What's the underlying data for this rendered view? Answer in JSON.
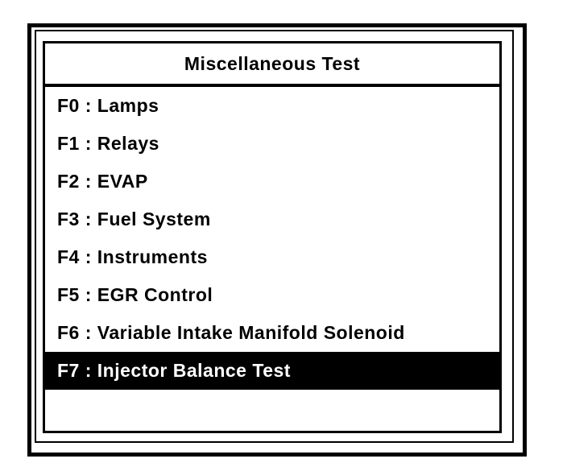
{
  "screen": {
    "title": "Miscellaneous Test"
  },
  "menu": {
    "items": [
      {
        "key": "F0",
        "label": "Lamps",
        "text": "F0 : Lamps",
        "selected": false
      },
      {
        "key": "F1",
        "label": "Relays",
        "text": "F1 : Relays",
        "selected": false
      },
      {
        "key": "F2",
        "label": "EVAP",
        "text": "F2 : EVAP",
        "selected": false
      },
      {
        "key": "F3",
        "label": "Fuel System",
        "text": "F3 : Fuel System",
        "selected": false
      },
      {
        "key": "F4",
        "label": "Instruments",
        "text": "F4 : Instruments",
        "selected": false
      },
      {
        "key": "F5",
        "label": "EGR Control",
        "text": "F5 : EGR Control",
        "selected": false
      },
      {
        "key": "F6",
        "label": "Variable Intake Manifold Solenoid",
        "text": "F6 : Variable Intake Manifold Solenoid",
        "selected": false
      },
      {
        "key": "F7",
        "label": "Injector Balance Test",
        "text": "F7 : Injector Balance Test",
        "selected": true
      }
    ]
  },
  "colors": {
    "foreground": "#000000",
    "background": "#ffffff",
    "highlight_background": "#000000",
    "highlight_text": "#ffffff"
  }
}
